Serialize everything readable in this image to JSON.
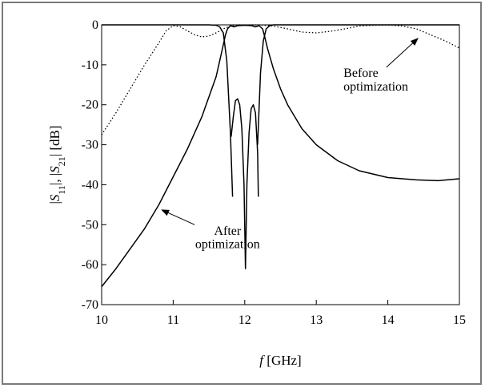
{
  "chart_data": {
    "type": "line",
    "xlabel": {
      "italic": "f",
      "rest": " [GHz]"
    },
    "ylabel": {
      "p1": "|",
      "s1": "S",
      "sub1": "11",
      "p2": "|,  |",
      "s2": "S",
      "sub2": "21",
      "p3": "| [dB]"
    },
    "xlim": [
      10,
      15
    ],
    "ylim": [
      -70,
      0
    ],
    "xticks": [
      "10",
      "11",
      "12",
      "13",
      "14",
      "15"
    ],
    "yticks": [
      "0",
      "-10",
      "-20",
      "-30",
      "-40",
      "-50",
      "-60",
      "-70"
    ],
    "grid": false,
    "series": [
      {
        "style": "solid",
        "points": [
          [
            10.0,
            0
          ],
          [
            10.3,
            0
          ],
          [
            10.6,
            0
          ],
          [
            10.9,
            0
          ],
          [
            11.2,
            0
          ],
          [
            11.5,
            0
          ],
          [
            11.6,
            -0.1
          ],
          [
            11.65,
            -0.5
          ],
          [
            11.7,
            -2
          ],
          [
            11.75,
            -9
          ],
          [
            11.8,
            -27
          ],
          [
            11.83,
            -43
          ]
        ]
      },
      {
        "style": "solid",
        "points": [
          [
            11.81,
            -28
          ],
          [
            11.84,
            -23
          ],
          [
            11.87,
            -19
          ],
          [
            11.9,
            -18.5
          ],
          [
            11.93,
            -20
          ],
          [
            11.96,
            -26
          ],
          [
            11.99,
            -40
          ],
          [
            12.01,
            -61
          ],
          [
            12.03,
            -40
          ],
          [
            12.06,
            -27
          ],
          [
            12.09,
            -21
          ],
          [
            12.12,
            -20
          ],
          [
            12.15,
            -22
          ],
          [
            12.18,
            -32
          ],
          [
            12.19,
            -43
          ]
        ]
      },
      {
        "style": "solid",
        "points": [
          [
            12.18,
            -30
          ],
          [
            12.22,
            -12
          ],
          [
            12.26,
            -4
          ],
          [
            12.3,
            -1
          ],
          [
            12.35,
            -0.2
          ],
          [
            12.4,
            0
          ],
          [
            13.0,
            0
          ],
          [
            14.0,
            0
          ],
          [
            15.0,
            0
          ]
        ]
      },
      {
        "style": "solid",
        "points": [
          [
            10.0,
            -65.5
          ],
          [
            10.2,
            -61
          ],
          [
            10.4,
            -56
          ],
          [
            10.6,
            -51
          ],
          [
            10.8,
            -45
          ],
          [
            11.0,
            -38
          ],
          [
            11.2,
            -31
          ],
          [
            11.4,
            -23
          ],
          [
            11.5,
            -18
          ],
          [
            11.6,
            -13
          ],
          [
            11.65,
            -9
          ],
          [
            11.7,
            -5
          ],
          [
            11.73,
            -2.5
          ],
          [
            11.76,
            -1
          ],
          [
            11.8,
            -0.2
          ],
          [
            11.85,
            -0.5
          ],
          [
            11.9,
            -0.2
          ],
          [
            12.0,
            -0.1
          ],
          [
            12.1,
            -0.2
          ],
          [
            12.15,
            -0.5
          ],
          [
            12.2,
            -0.2
          ],
          [
            12.25,
            -1
          ],
          [
            12.28,
            -3
          ],
          [
            12.32,
            -6
          ],
          [
            12.4,
            -11
          ],
          [
            12.5,
            -16
          ],
          [
            12.6,
            -20
          ],
          [
            12.8,
            -26
          ],
          [
            13.0,
            -30
          ],
          [
            13.3,
            -34
          ],
          [
            13.6,
            -36.5
          ],
          [
            14.0,
            -38.2
          ],
          [
            14.4,
            -38.8
          ],
          [
            14.7,
            -39
          ],
          [
            15.0,
            -38.5
          ]
        ]
      },
      {
        "style": "dotted",
        "points": [
          [
            10.0,
            -27.5
          ],
          [
            10.2,
            -22
          ],
          [
            10.4,
            -16
          ],
          [
            10.6,
            -10
          ],
          [
            10.8,
            -4.5
          ],
          [
            10.9,
            -1.5
          ],
          [
            11.0,
            -0.2
          ],
          [
            11.1,
            -0.5
          ],
          [
            11.2,
            -1.5
          ],
          [
            11.3,
            -2.5
          ],
          [
            11.4,
            -3
          ],
          [
            11.5,
            -2.8
          ],
          [
            11.6,
            -2
          ],
          [
            11.7,
            -1
          ],
          [
            11.8,
            -0.3
          ],
          [
            11.9,
            0
          ],
          [
            12.0,
            0
          ],
          [
            12.2,
            0
          ],
          [
            12.4,
            -0.3
          ],
          [
            12.6,
            -1
          ],
          [
            12.8,
            -1.8
          ],
          [
            13.0,
            -2
          ],
          [
            13.2,
            -1.6
          ],
          [
            13.4,
            -1
          ],
          [
            13.6,
            -0.3
          ],
          [
            13.8,
            -0.1
          ],
          [
            14.0,
            0
          ],
          [
            14.2,
            -0.3
          ],
          [
            14.4,
            -1
          ],
          [
            14.6,
            -2.5
          ],
          [
            14.8,
            -4
          ],
          [
            15.0,
            -5.8
          ]
        ]
      }
    ],
    "annotations": [
      {
        "lines": [
          "Before",
          "optimization"
        ],
        "anchor": "start",
        "text_at": [
          13.38,
          -13.0
        ],
        "line_height": 3.4,
        "arrow_from": [
          13.98,
          -10.6
        ],
        "arrow_to": [
          14.42,
          -3.4
        ]
      },
      {
        "lines": [
          "After",
          "optimization"
        ],
        "anchor": "middle",
        "text_at": [
          11.76,
          -52.5
        ],
        "line_height": 3.4,
        "arrow_from": [
          11.3,
          -50.0
        ],
        "arrow_to": [
          10.84,
          -46.3
        ]
      }
    ]
  }
}
